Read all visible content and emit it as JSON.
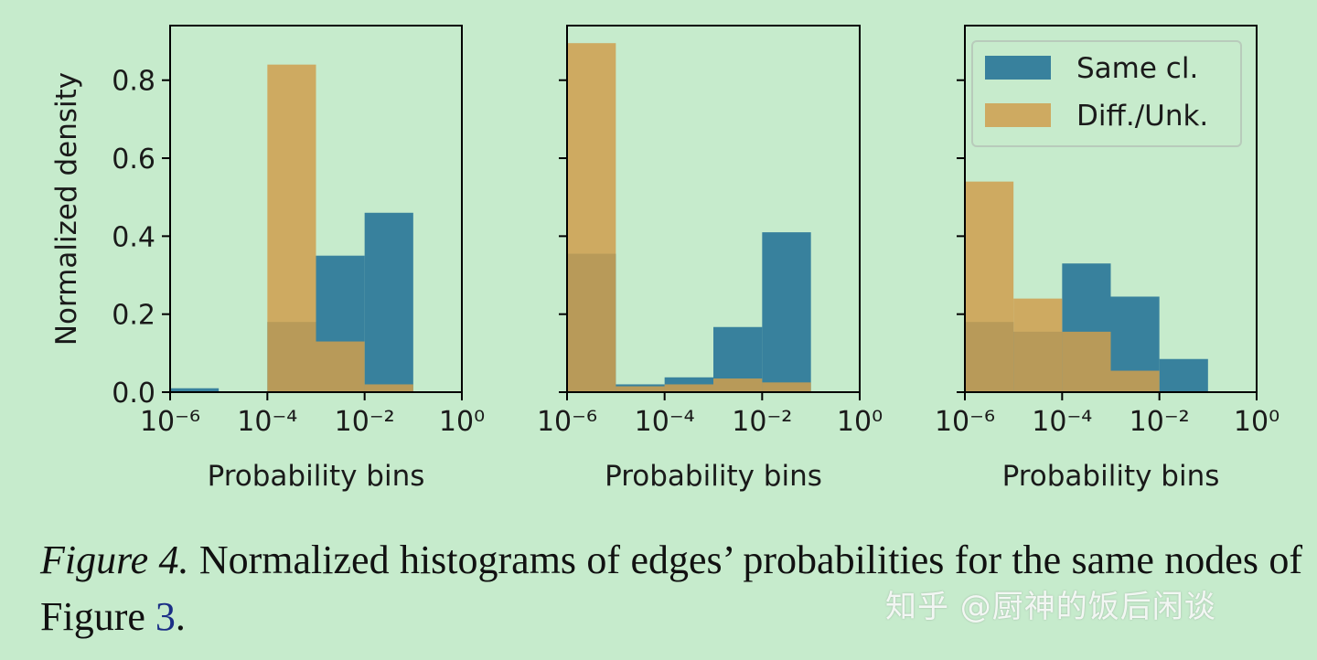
{
  "chart_data": [
    {
      "type": "bar",
      "x_scale": "log",
      "xlabel": "Probability bins",
      "ylabel": "Normalized density",
      "xlim": [
        1e-06,
        1
      ],
      "ylim": [
        0,
        0.94
      ],
      "x_ticks": [
        1e-06,
        0.0001,
        0.01,
        1
      ],
      "x_tick_labels": [
        "10⁻⁶",
        "10⁻⁴",
        "10⁻²",
        "10⁰"
      ],
      "y_ticks": [
        0,
        0.2,
        0.4,
        0.6,
        0.8
      ],
      "y_tick_labels": [
        "0.0",
        "0.2",
        "0.4",
        "0.6",
        "0.8"
      ],
      "bin_edges": [
        1e-06,
        1e-05,
        0.0001,
        0.001,
        0.01,
        0.1,
        1
      ],
      "series": [
        {
          "name": "Same cl.",
          "values": [
            0.01,
            0.0,
            0.18,
            0.35,
            0.46,
            0.0
          ]
        },
        {
          "name": "Diff./Unk.",
          "values": [
            0.0,
            0.0,
            0.84,
            0.13,
            0.02,
            0.0
          ]
        }
      ]
    },
    {
      "type": "bar",
      "x_scale": "log",
      "xlabel": "Probability bins",
      "ylabel": "",
      "xlim": [
        1e-06,
        1
      ],
      "ylim": [
        0,
        0.94
      ],
      "x_ticks": [
        1e-06,
        0.0001,
        0.01,
        1
      ],
      "x_tick_labels": [
        "10⁻⁶",
        "10⁻⁴",
        "10⁻²",
        "10⁰"
      ],
      "y_ticks": [
        0,
        0.2,
        0.4,
        0.6,
        0.8
      ],
      "y_tick_labels": [],
      "bin_edges": [
        1e-06,
        1e-05,
        0.0001,
        0.001,
        0.01,
        0.1,
        1
      ],
      "series": [
        {
          "name": "Same cl.",
          "values": [
            0.355,
            0.02,
            0.038,
            0.167,
            0.41,
            0.002
          ]
        },
        {
          "name": "Diff./Unk.",
          "values": [
            0.895,
            0.015,
            0.02,
            0.035,
            0.025,
            0.0
          ]
        }
      ]
    },
    {
      "type": "bar",
      "x_scale": "log",
      "xlabel": "Probability bins",
      "ylabel": "",
      "xlim": [
        1e-06,
        1
      ],
      "ylim": [
        0,
        0.94
      ],
      "x_ticks": [
        1e-06,
        0.0001,
        0.01,
        1
      ],
      "x_tick_labels": [
        "10⁻⁶",
        "10⁻⁴",
        "10⁻²",
        "10⁰"
      ],
      "y_ticks": [
        0,
        0.2,
        0.4,
        0.6,
        0.8
      ],
      "y_tick_labels": [],
      "bin_edges": [
        1e-06,
        1e-05,
        0.0001,
        0.001,
        0.01,
        0.1,
        1
      ],
      "legend": {
        "placement": "top-right",
        "entries": [
          "Same cl.",
          "Diff./Unk."
        ]
      },
      "series": [
        {
          "name": "Same cl.",
          "values": [
            0.18,
            0.155,
            0.33,
            0.245,
            0.085,
            0.0
          ]
        },
        {
          "name": "Diff./Unk.",
          "values": [
            0.54,
            0.24,
            0.155,
            0.055,
            0.0,
            0.0
          ]
        }
      ]
    }
  ],
  "colors": {
    "same": "#1f6f94",
    "diff": "#cf9f4e",
    "bar_opacity": 0.85,
    "axis": "#000000"
  },
  "caption": {
    "label": "Figure 4.",
    "text": " Normalized histograms of edges’ probabilities for the same nodes of Figure ",
    "ref": "3",
    "end": "."
  },
  "watermark": "知乎 @厨神的饭后闲谈"
}
